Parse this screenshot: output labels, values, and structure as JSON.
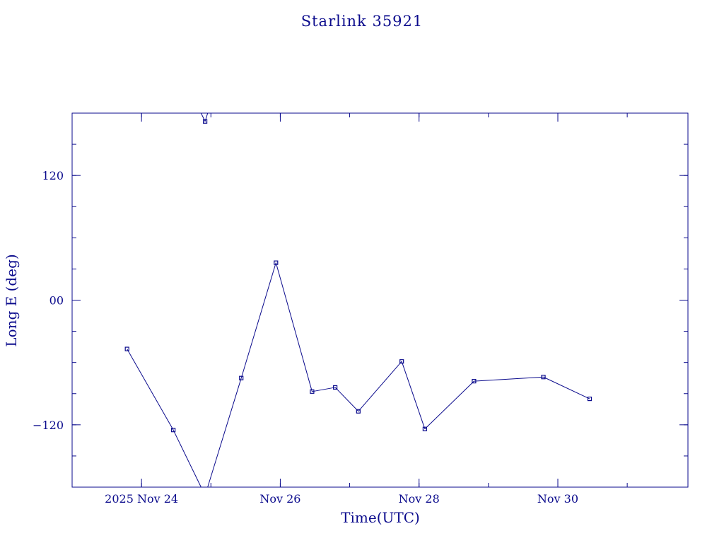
{
  "chart_data": {
    "type": "line",
    "title": "Starlink 35921",
    "xlabel": "Time(UTC)",
    "ylabel": "Long E (deg)",
    "x_unit": "days",
    "xlim": [
      "2025-11-23T00:00",
      "2025-12-01T21:00"
    ],
    "ylim": [
      -180,
      180
    ],
    "grid": false,
    "x_ticks": [
      {
        "value": "2025-11-24T00:00",
        "label": "2025 Nov 24"
      },
      {
        "value": "2025-11-26T00:00",
        "label": "Nov 26"
      },
      {
        "value": "2025-11-28T00:00",
        "label": "Nov 28"
      },
      {
        "value": "2025-11-30T00:00",
        "label": "Nov 30"
      }
    ],
    "y_ticks": [
      {
        "value": 120,
        "label": "120"
      },
      {
        "value": 0,
        "label": "00"
      },
      {
        "value": -120,
        "label": "−120"
      }
    ],
    "points": [
      {
        "x": "2025-11-23T19:00",
        "y": -47
      },
      {
        "x": "2025-11-24T11:00",
        "y": -125
      },
      {
        "x": "2025-11-24T22:00",
        "y": 172
      },
      {
        "x": "2025-11-25T10:30",
        "y": -75
      },
      {
        "x": "2025-11-25T22:30",
        "y": 36
      },
      {
        "x": "2025-11-26T11:00",
        "y": -88
      },
      {
        "x": "2025-11-26T19:00",
        "y": -84
      },
      {
        "x": "2025-11-27T03:00",
        "y": -107
      },
      {
        "x": "2025-11-27T18:00",
        "y": -59
      },
      {
        "x": "2025-11-28T02:00",
        "y": -124
      },
      {
        "x": "2025-11-28T19:00",
        "y": -78
      },
      {
        "x": "2025-11-29T19:00",
        "y": -74
      },
      {
        "x": "2025-11-30T11:00",
        "y": -95
      }
    ]
  }
}
